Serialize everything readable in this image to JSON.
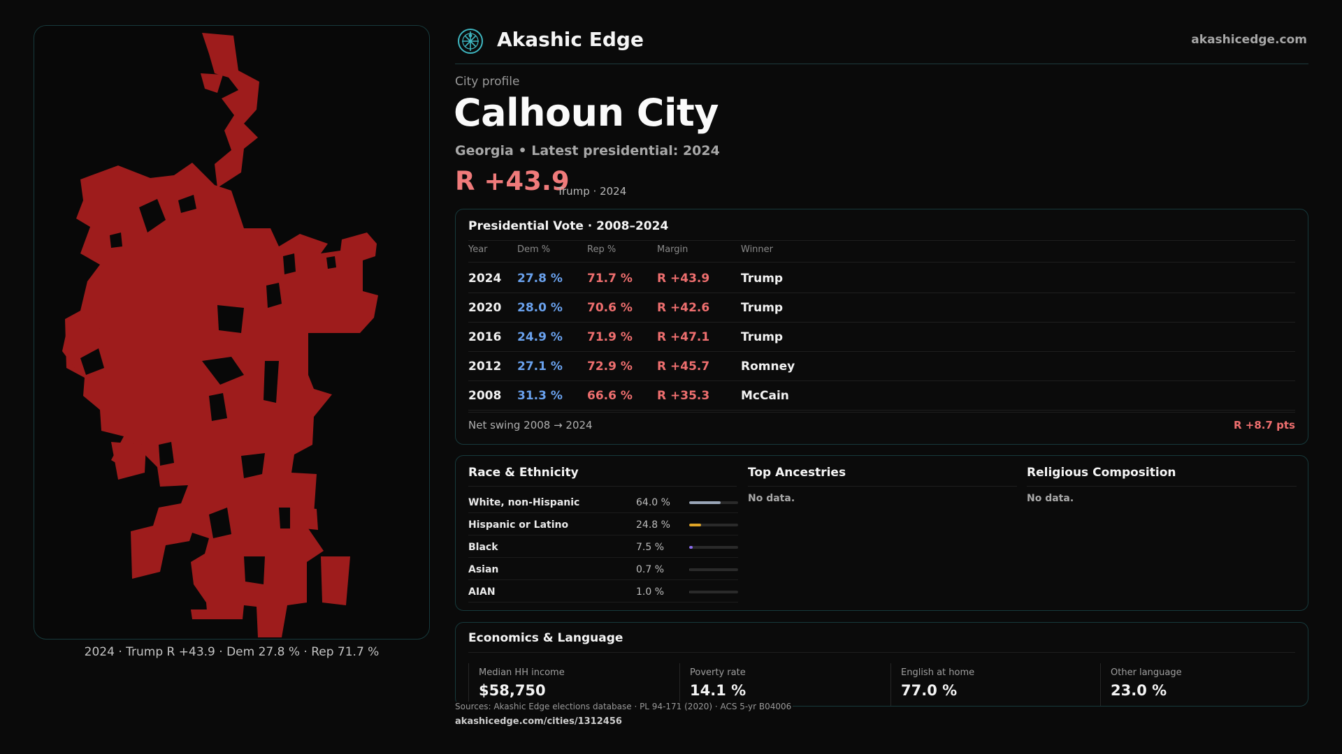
{
  "header": {
    "brand": "Akashic Edge",
    "site": "akashicedge.com"
  },
  "profile": {
    "kicker": "City profile",
    "city": "Calhoun City",
    "subline": "Georgia • Latest presidential: 2024",
    "margin": "R +43.9",
    "margin_note": "Trump · 2024"
  },
  "map": {
    "caption": "2024 · Trump R +43.9 · Dem 27.8 % · Rep 71.7 %",
    "fill_color": "#9e1c1c"
  },
  "vote": {
    "title": "Presidential Vote · 2008–2024",
    "columns": [
      "Year",
      "Dem %",
      "Rep %",
      "Margin",
      "Winner"
    ],
    "rows": [
      {
        "year": "2024",
        "dem": "27.8 %",
        "rep": "71.7 %",
        "margin": "R +43.9",
        "winner": "Trump"
      },
      {
        "year": "2020",
        "dem": "28.0 %",
        "rep": "70.6 %",
        "margin": "R +42.6",
        "winner": "Trump"
      },
      {
        "year": "2016",
        "dem": "24.9 %",
        "rep": "71.9 %",
        "margin": "R +47.1",
        "winner": "Trump"
      },
      {
        "year": "2012",
        "dem": "27.1 %",
        "rep": "72.9 %",
        "margin": "R +45.7",
        "winner": "Romney"
      },
      {
        "year": "2008",
        "dem": "31.3 %",
        "rep": "66.6 %",
        "margin": "R +35.3",
        "winner": "McCain"
      }
    ],
    "swing_label": "Net swing 2008 → 2024",
    "swing_value": "R +8.7 pts",
    "dem_color": "#6aa2ee",
    "rep_color": "#ef6f6f"
  },
  "race": {
    "title": "Race & Ethnicity",
    "rows": [
      {
        "label": "White, non-Hispanic",
        "pct": "64.0 %",
        "value": 64.0,
        "color": "#9aa6b8"
      },
      {
        "label": "Hispanic or Latino",
        "pct": "24.8 %",
        "value": 24.8,
        "color": "#e0a526"
      },
      {
        "label": "Black",
        "pct": "7.5 %",
        "value": 7.5,
        "color": "#8b6cf0"
      },
      {
        "label": "Asian",
        "pct": "0.7 %",
        "value": 0.7,
        "color": "#3d3d3d"
      },
      {
        "label": "AIAN",
        "pct": "1.0 %",
        "value": 1.0,
        "color": "#3d3d3d"
      }
    ]
  },
  "ancestries": {
    "title": "Top Ancestries",
    "empty": "No data."
  },
  "religion": {
    "title": "Religious Composition",
    "empty": "No data."
  },
  "economics": {
    "title": "Economics & Language",
    "stats": [
      {
        "label": "Median HH income",
        "value": "$58,750"
      },
      {
        "label": "Poverty rate",
        "value": "14.1 %"
      },
      {
        "label": "English at home",
        "value": "77.0 %"
      },
      {
        "label": "Other language",
        "value": "23.0 %"
      }
    ]
  },
  "footer": {
    "sources": "Sources: Akashic Edge elections database · PL 94-171 (2020) · ACS 5-yr B04006",
    "url": "akashicedge.com/cities/1312456"
  }
}
